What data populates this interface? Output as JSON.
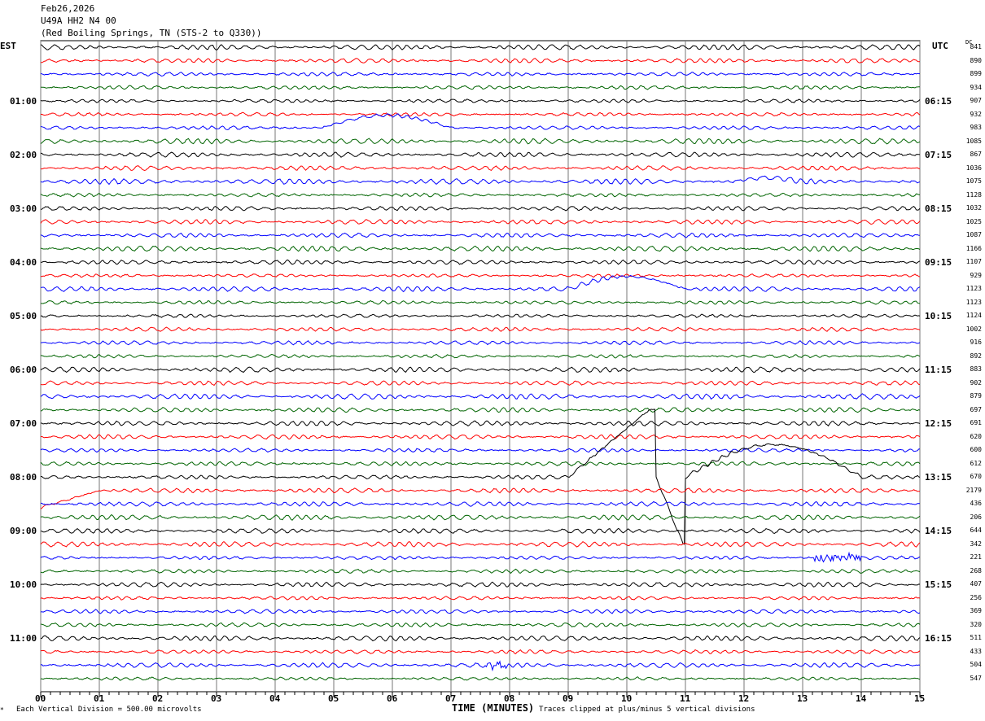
{
  "header": {
    "date": "Feb26,2026",
    "station": "U49A HH2 N4 00",
    "location": "(Red Boiling Springs, TN (STS-2 to Q330))"
  },
  "left_tz": "EST",
  "right_tz": "UTC",
  "dc_label": "DC",
  "footer": {
    "scale": "Each Vertical Division =  500.00 microvolts",
    "xlabel": "TIME (MINUTES)",
    "clip_note": "Traces clipped at plus/minus 5 vertical divisions"
  },
  "chart_data": {
    "type": "line",
    "title": "U49A HH2 N4 00 helicorder Feb26,2026",
    "xlabel": "TIME (MINUTES)",
    "xlim": [
      0,
      15
    ],
    "x_ticks": [
      "00",
      "01",
      "02",
      "03",
      "04",
      "05",
      "06",
      "07",
      "08",
      "09",
      "10",
      "11",
      "12",
      "13",
      "14",
      "15"
    ],
    "rows_per_hour": 4,
    "row_colors": [
      "#000000",
      "#ff0000",
      "#0000ff",
      "#006400"
    ],
    "est_labels": [
      "",
      "01:00",
      "02:00",
      "03:00",
      "04:00",
      "05:00",
      "06:00",
      "07:00",
      "08:00",
      "09:00",
      "10:00",
      "11:00"
    ],
    "utc_labels": [
      "",
      "06:15",
      "07:15",
      "08:15",
      "09:15",
      "10:15",
      "11:15",
      "12:15",
      "13:15",
      "14:15",
      "15:15",
      "16:15"
    ],
    "dc_offsets": [
      "841",
      "890",
      "899",
      "934",
      "907",
      "932",
      "983",
      "1085",
      "867",
      "1036",
      "1075",
      "1128",
      "1032",
      "1025",
      "1087",
      "1166",
      "1107",
      "929",
      "1123",
      "1123",
      "1124",
      "1002",
      "916",
      "892",
      "883",
      "902",
      "879",
      "697",
      "691",
      "620",
      "600",
      "612",
      "670",
      "2179",
      "436",
      "206",
      "644",
      "342",
      "221",
      "268",
      "407",
      "256",
      "369",
      "320",
      "511",
      "433",
      "504",
      "547"
    ],
    "events": [
      {
        "row": 6,
        "start_min": 4.8,
        "end_min": 7,
        "type": "long-period bump",
        "amplitude_div": 2
      },
      {
        "row": 10,
        "start_min": 11.8,
        "end_min": 13,
        "type": "small bump",
        "amplitude_div": 0.6
      },
      {
        "row": 18,
        "start_min": 9,
        "end_min": 11,
        "type": "long-period bump",
        "amplitude_div": 2
      },
      {
        "row": 32,
        "start_min": 0,
        "end_min": 15,
        "type": "large long-period excursion, clipped",
        "amplitude_div": 5
      },
      {
        "row": 33,
        "start_min": 0,
        "end_min": 1,
        "type": "ramp",
        "amplitude_div": 2.5
      },
      {
        "row": 38,
        "start_min": 13.2,
        "end_min": 14,
        "type": "high-frequency burst",
        "amplitude_div": 0.6
      },
      {
        "row": 46,
        "start_min": 7.6,
        "end_min": 8,
        "type": "high-frequency burst",
        "amplitude_div": 0.6
      }
    ]
  }
}
